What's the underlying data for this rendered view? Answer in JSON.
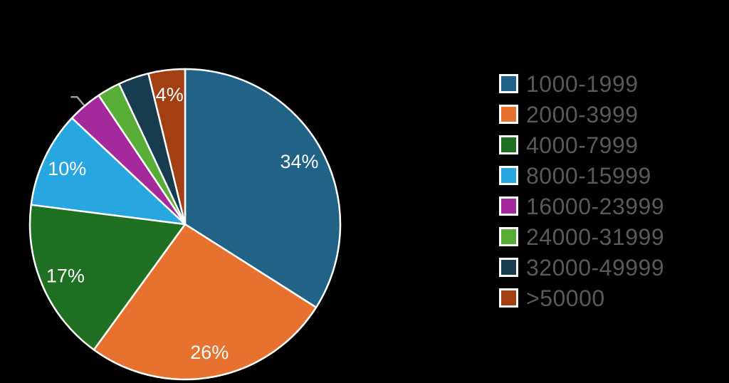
{
  "background_color": "#000000",
  "chart_data": {
    "type": "pie",
    "title": "",
    "legend_position": "right",
    "direction": "clockwise",
    "start_angle_deg": 0,
    "slices": [
      {
        "label": "1000-1999",
        "percent": 34.0,
        "display_label": "34%",
        "color": "#206386",
        "leader_line": false
      },
      {
        "label": "2000-3999",
        "percent": 26.0,
        "display_label": "26%",
        "color": "#e7712e",
        "leader_line": false
      },
      {
        "label": "4000-7999",
        "percent": 17.0,
        "display_label": "17%",
        "color": "#1f7022",
        "leader_line": false
      },
      {
        "label": "8000-15999",
        "percent": 10.0,
        "display_label": "10%",
        "color": "#28a6e0",
        "leader_line": false
      },
      {
        "label": "16000-23999",
        "percent": 3.6,
        "display_label": "",
        "color": "#a4299c",
        "leader_line": true
      },
      {
        "label": "24000-31999",
        "percent": 2.4,
        "display_label": "",
        "color": "#57ad35",
        "leader_line": false
      },
      {
        "label": "32000-49999",
        "percent": 3.2,
        "display_label": "",
        "color": "#173b4f",
        "leader_line": false
      },
      {
        "label": ">50000",
        "percent": 3.8,
        "display_label": "4%",
        "color": "#a24014",
        "leader_line": false
      }
    ],
    "styles": {
      "slice_label_color": "#ffffff",
      "slice_stroke_color": "#ffffff",
      "legend_text_color": "#595959",
      "legend_swatch_border_color": "#ffffff",
      "leader_line_color": "#9b9b9b"
    }
  }
}
